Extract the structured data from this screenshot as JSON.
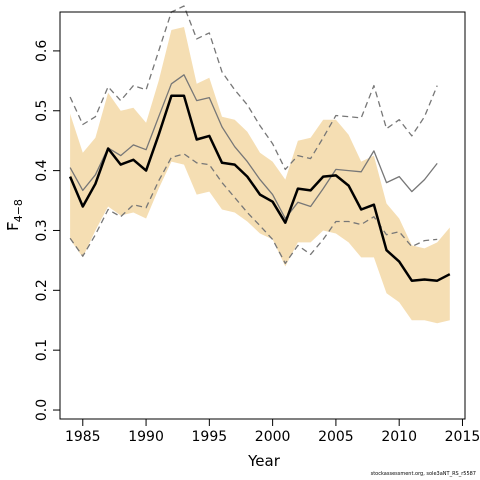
{
  "chart_data": {
    "type": "line",
    "title": "",
    "xlabel": "Year",
    "ylabel_main": "F",
    "ylabel_sub": "4−8",
    "xlim": [
      1983.2,
      2015.2
    ],
    "ylim": [
      -0.015,
      0.665
    ],
    "xticks": [
      "1985",
      "1990",
      "1995",
      "2000",
      "2005",
      "2010",
      "2015"
    ],
    "yticks": [
      "0.0",
      "0.1",
      "0.2",
      "0.3",
      "0.4",
      "0.5",
      "0.6"
    ],
    "band": {
      "x": [
        1984,
        1985,
        1986,
        1987,
        1988,
        1989,
        1990,
        1991,
        1992,
        1993,
        1994,
        1995,
        1996,
        1997,
        1998,
        1999,
        2000,
        2001,
        2002,
        2003,
        2004,
        2005,
        2006,
        2007,
        2008,
        2009,
        2010,
        2011,
        2012,
        2013,
        2014
      ],
      "upper": [
        0.495,
        0.43,
        0.455,
        0.53,
        0.5,
        0.505,
        0.48,
        0.55,
        0.635,
        0.64,
        0.545,
        0.555,
        0.49,
        0.485,
        0.465,
        0.43,
        0.415,
        0.385,
        0.45,
        0.455,
        0.485,
        0.485,
        0.46,
        0.415,
        0.425,
        0.345,
        0.32,
        0.275,
        0.27,
        0.28,
        0.305
      ],
      "lower": [
        0.285,
        0.255,
        0.3,
        0.34,
        0.325,
        0.33,
        0.32,
        0.37,
        0.415,
        0.41,
        0.36,
        0.365,
        0.335,
        0.33,
        0.315,
        0.295,
        0.285,
        0.24,
        0.28,
        0.28,
        0.3,
        0.295,
        0.28,
        0.255,
        0.255,
        0.195,
        0.18,
        0.15,
        0.15,
        0.145,
        0.15
      ]
    },
    "series": [
      {
        "values": [
          0.39,
          0.34,
          0.378,
          0.437,
          0.41,
          0.418,
          0.4,
          0.46,
          0.525,
          0.525,
          0.452,
          0.458,
          0.413,
          0.41,
          0.39,
          0.36,
          0.348,
          0.313,
          0.37,
          0.367,
          0.39,
          0.392,
          0.375,
          0.335,
          0.343,
          0.267,
          0.248,
          0.216,
          0.218,
          0.216,
          0.227
        ],
        "x": [
          1984,
          1985,
          1986,
          1987,
          1988,
          1989,
          1990,
          1991,
          1992,
          1993,
          1994,
          1995,
          1996,
          1997,
          1998,
          1999,
          2000,
          2001,
          2002,
          2003,
          2004,
          2005,
          2006,
          2007,
          2008,
          2009,
          2010,
          2011,
          2012,
          2013,
          2014
        ],
        "color": "#000000",
        "style": "solid-thick"
      },
      {
        "values": [
          0.405,
          0.367,
          0.393,
          0.438,
          0.425,
          0.443,
          0.435,
          0.49,
          0.545,
          0.56,
          0.517,
          0.522,
          0.473,
          0.44,
          0.415,
          0.385,
          0.36,
          0.32,
          0.347,
          0.34,
          0.37,
          0.402,
          0.4,
          0.398,
          0.433,
          0.38,
          0.39,
          0.365,
          0.385,
          0.412
        ],
        "x": [
          1984,
          1985,
          1986,
          1987,
          1988,
          1989,
          1990,
          1991,
          1992,
          1993,
          1994,
          1995,
          1996,
          1997,
          1998,
          1999,
          2000,
          2001,
          2002,
          2003,
          2004,
          2005,
          2006,
          2007,
          2008,
          2009,
          2010,
          2011,
          2012,
          2013
        ],
        "color": "#777777",
        "style": "solid"
      },
      {
        "values": [
          0.523,
          0.477,
          0.49,
          0.54,
          0.517,
          0.542,
          0.535,
          0.6,
          0.665,
          0.675,
          0.62,
          0.63,
          0.565,
          0.535,
          0.51,
          0.475,
          0.445,
          0.402,
          0.425,
          0.42,
          0.455,
          0.492,
          0.49,
          0.488,
          0.542,
          0.47,
          0.485,
          0.458,
          0.49,
          0.542
        ],
        "x": [
          1984,
          1985,
          1986,
          1987,
          1988,
          1989,
          1990,
          1991,
          1992,
          1993,
          1994,
          1995,
          1996,
          1997,
          1998,
          1999,
          2000,
          2001,
          2002,
          2003,
          2004,
          2005,
          2006,
          2007,
          2008,
          2009,
          2010,
          2011,
          2012,
          2013
        ],
        "color": "#777777",
        "style": "dashed"
      },
      {
        "values": [
          0.287,
          0.257,
          0.293,
          0.335,
          0.323,
          0.343,
          0.338,
          0.383,
          0.422,
          0.428,
          0.413,
          0.41,
          0.38,
          0.355,
          0.33,
          0.308,
          0.285,
          0.245,
          0.275,
          0.26,
          0.285,
          0.315,
          0.315,
          0.31,
          0.323,
          0.293,
          0.298,
          0.273,
          0.283,
          0.285
        ],
        "x": [
          1984,
          1985,
          1986,
          1987,
          1988,
          1989,
          1990,
          1991,
          1992,
          1993,
          1994,
          1995,
          1996,
          1997,
          1998,
          1999,
          2000,
          2001,
          2002,
          2003,
          2004,
          2005,
          2006,
          2007,
          2008,
          2009,
          2010,
          2011,
          2012,
          2013
        ],
        "color": "#777777",
        "style": "dashed"
      }
    ],
    "band_color": "#f5deb3",
    "grid": false,
    "legend": "none"
  },
  "footer": {
    "note": "stockassessment.org, sole3aNT_RS_r5587"
  }
}
